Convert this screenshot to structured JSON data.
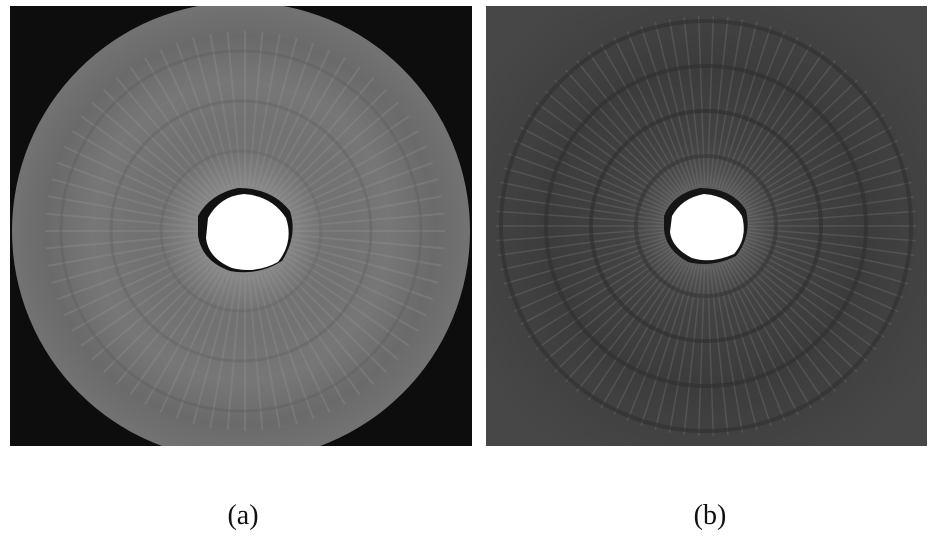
{
  "figure": {
    "panels": [
      {
        "caption": "(a)",
        "description_colors": {
          "background": "#0d0d0d",
          "disc": "#6f6f6f",
          "center": "#ffffff"
        }
      },
      {
        "caption": "(b)",
        "description_colors": {
          "background": "#3d3d3d",
          "center": "#ffffff"
        }
      }
    ]
  }
}
